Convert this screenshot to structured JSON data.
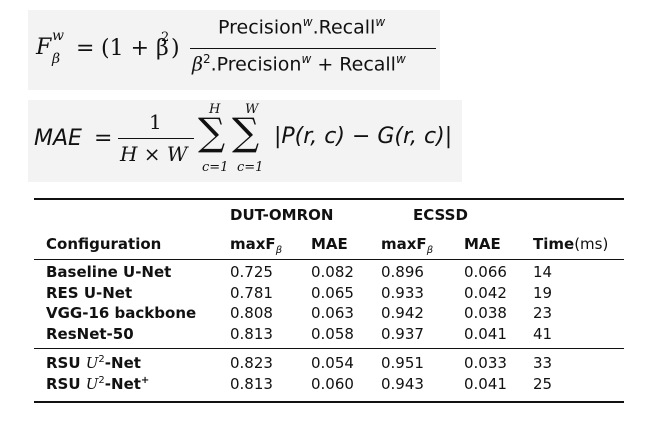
{
  "formula1": {
    "lhs_F": "F",
    "lhs_sup": "w",
    "lhs_sub": "β",
    "equals": "=",
    "factor": "(1 + β",
    "factor_sup": "2",
    "factor_close": ")",
    "num": "Precision",
    "num_sup1": "w",
    "num_mid": ".Recall",
    "num_sup2": "w",
    "den_beta": "β",
    "den_beta_sup": "2",
    "den_mid": ".Precision",
    "den_sup1": "w",
    "den_plus": " + Recall",
    "den_sup2": "w"
  },
  "formula2": {
    "lhs": "MAE",
    "equals": "=",
    "frac_num": "1",
    "frac_den": "H × W",
    "sum1_top": "H",
    "sum1_bot": "c=1",
    "sum2_top": "W",
    "sum2_bot": "c=1",
    "sigma": "∑",
    "body": "|P(r, c) − G(r, c)|"
  },
  "table": {
    "group_headers": [
      "DUT-OMRON",
      "ECSSD"
    ],
    "columns": {
      "configuration": "Configuration",
      "maxf": "maxF",
      "maxf_sub": "β",
      "mae": "MAE",
      "time": "Time",
      "time_unit": "(ms)"
    },
    "rows": [
      {
        "config": "Baseline U-Net",
        "d_maxf": "0.725",
        "d_mae": "0.082",
        "e_maxf": "0.896",
        "e_mae": "0.066",
        "time": "14"
      },
      {
        "config": "RES U-Net",
        "d_maxf": "0.781",
        "d_mae": "0.065",
        "e_maxf": "0.933",
        "e_mae": "0.042",
        "time": "19"
      },
      {
        "config": "VGG-16 backbone",
        "d_maxf": "0.808",
        "d_mae": "0.063",
        "e_maxf": "0.942",
        "e_mae": "0.038",
        "time": "23"
      },
      {
        "config": "ResNet-50",
        "d_maxf": "0.813",
        "d_mae": "0.058",
        "e_maxf": "0.937",
        "e_mae": "0.041",
        "time": "41"
      }
    ],
    "rsu_rows": [
      {
        "prefix": "RSU ",
        "u": "U",
        "sup": "2",
        "suffix": "-Net",
        "plus": "",
        "d_maxf": "0.823",
        "d_mae": "0.054",
        "e_maxf": "0.951",
        "e_mae": "0.033",
        "time": "33"
      },
      {
        "prefix": "RSU ",
        "u": "U",
        "sup": "2",
        "suffix": "-Net",
        "plus": "+",
        "d_maxf": "0.813",
        "d_mae": "0.060",
        "e_maxf": "0.943",
        "e_mae": "0.041",
        "time": "25"
      }
    ]
  }
}
